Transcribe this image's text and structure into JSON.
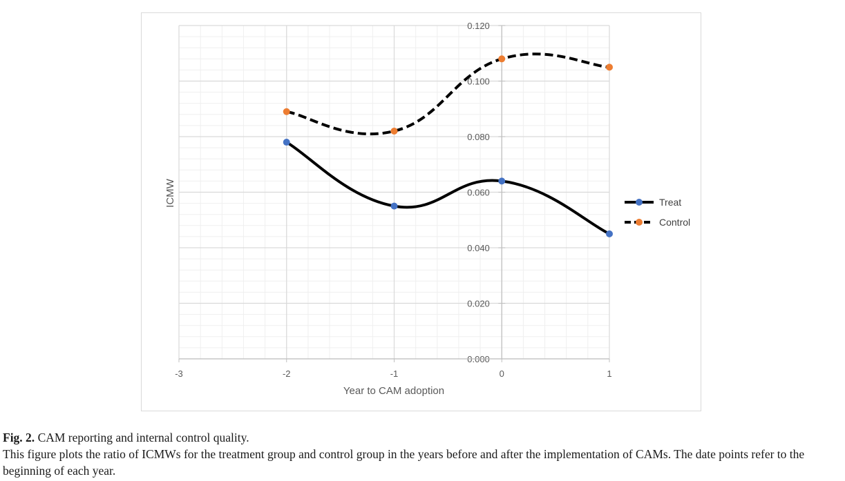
{
  "chart_data": {
    "type": "line",
    "xlabel": "Year to CAM adoption",
    "ylabel": "ICMW",
    "x_ticks": [
      "-3",
      "-2",
      "-1",
      "0",
      "1"
    ],
    "y_ticks": [
      "0.000",
      "0.020",
      "0.040",
      "0.060",
      "0.080",
      "0.100",
      "0.120"
    ],
    "xlim": [
      -3,
      1
    ],
    "ylim": [
      0,
      0.12
    ],
    "grid": true,
    "legend_position": "right",
    "series": [
      {
        "name": "Treat",
        "x": [
          -2,
          -1,
          0,
          1
        ],
        "values": [
          0.078,
          0.055,
          0.064,
          0.045
        ],
        "line_color": "#000000",
        "marker_color": "#4472C4",
        "dash": false
      },
      {
        "name": "Control",
        "x": [
          -2,
          -1,
          0,
          1
        ],
        "values": [
          0.089,
          0.082,
          0.108,
          0.105
        ],
        "line_color": "#000000",
        "marker_color": "#ED7D31",
        "dash": true
      }
    ]
  },
  "caption": {
    "label": "Fig. 2.",
    "title": "CAM reporting and internal control quality.",
    "text": "This figure plots the ratio of ICMWs for the treatment group and control group in the years before and after the implementation of CAMs. The date points refer to the beginning of each year."
  }
}
